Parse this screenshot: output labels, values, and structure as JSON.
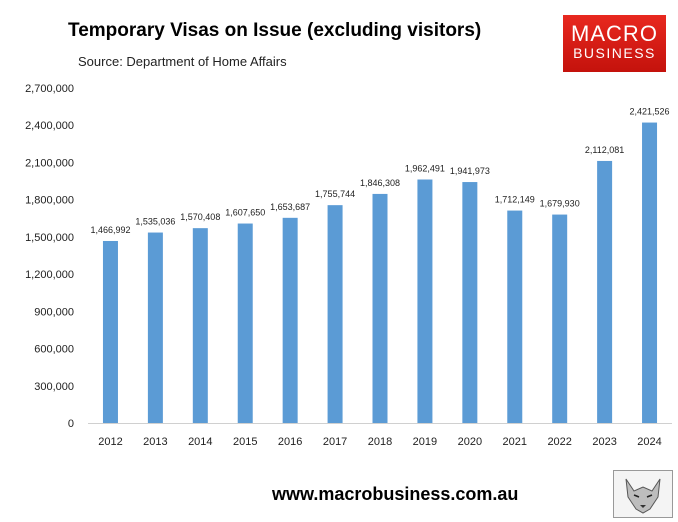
{
  "header": {
    "title": "Temporary Visas on Issue (excluding visitors)",
    "source": "Source: Department of Home Affairs"
  },
  "logo": {
    "line1": "MACRO",
    "line2": "BUSINESS",
    "color": "#d91a13"
  },
  "footer": {
    "url": "www.macrobusiness.com.au"
  },
  "chart_data": {
    "type": "bar",
    "categories": [
      "2012",
      "2013",
      "2014",
      "2015",
      "2016",
      "2017",
      "2018",
      "2019",
      "2020",
      "2021",
      "2022",
      "2023",
      "2024"
    ],
    "values": [
      1466992,
      1535036,
      1570408,
      1607650,
      1653687,
      1755744,
      1846308,
      1962491,
      1941973,
      1712149,
      1679930,
      2112081,
      2421526
    ],
    "data_labels": [
      "1,466,992",
      "1,535,036",
      "1,570,408",
      "1,607,650",
      "1,653,687",
      "1,755,744",
      "1,846,308",
      "1,962,491",
      "1,941,973",
      "1,712,149",
      "1,679,930",
      "2,112,081",
      "2,421,526"
    ],
    "yticks": [
      "0",
      "300,000",
      "600,000",
      "900,000",
      "1,200,000",
      "1,500,000",
      "1,800,000",
      "2,100,000",
      "2,400,000",
      "2,700,000"
    ],
    "ylim": [
      0,
      2700000
    ],
    "grid": false,
    "bar_color": "#5b9bd5",
    "title": "Temporary Visas on Issue (excluding visitors)",
    "xlabel": "",
    "ylabel": ""
  }
}
